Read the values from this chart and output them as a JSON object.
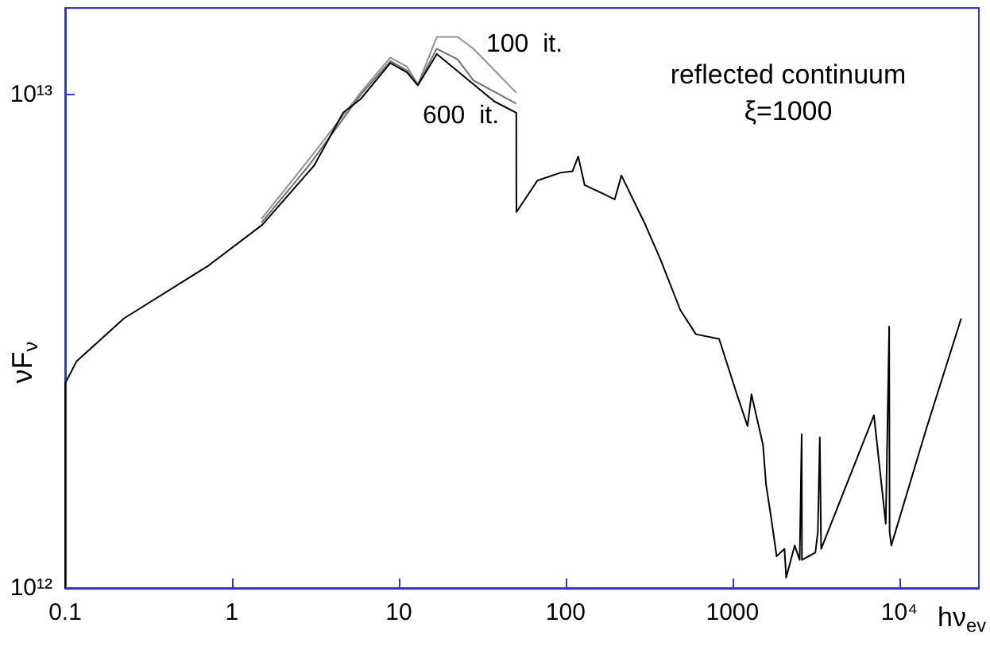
{
  "chart_data": {
    "type": "line",
    "xlabel": "hν$_{ev}$",
    "ylabel": "νF$_{ν}$",
    "log": "xy",
    "marker": "none",
    "line_style": "solid",
    "grid": false,
    "xlim": [
      0.1,
      30000
    ],
    "ylim": [
      1000000000000.0,
      15000000000000.0
    ],
    "xticks": [
      0.1,
      1,
      10,
      100,
      1000,
      {
        "value": 10000,
        "label": "10⁴"
      }
    ],
    "yticks": [
      {
        "value": 1000000000000.0,
        "label": "10¹²"
      },
      {
        "value": 10000000000000.0,
        "label": "10¹³"
      }
    ],
    "annotations": [
      "100  it.",
      "600  it.",
      "reflected continuum",
      "ξ=1000"
    ],
    "series": [
      {
        "color": "#909090",
        "x": [
          1.5,
          2.9,
          5.9,
          8.9,
          11.2,
          13,
          16.9,
          22.5,
          28,
          50.6
        ],
        "values": [
          5600000000000.0,
          7400000000000.0,
          10100000000000.0,
          11900000000000.0,
          11400000000000.0,
          10500000000000.0,
          13100000000000.0,
          13100000000000.0,
          12400000000000.0,
          10100000000000.0
        ]
      },
      {
        "color": "#707070",
        "x": [
          1.5,
          2.9,
          5.9,
          8.9,
          11.2,
          13,
          16.9,
          22.5,
          28,
          50.6
        ],
        "values": [
          5500000000000.0,
          7200000000000.0,
          10000000000000.0,
          11700000000000.0,
          11200000000000.0,
          10500000000000.0,
          12400000000000.0,
          11800000000000.0,
          10700000000000.0,
          9600000000000.0
        ]
      },
      {
        "color": "#000000",
        "x": [
          0.1,
          0.1,
          0.117,
          0.225,
          0.72,
          1.52,
          3.12,
          4.64,
          5.9,
          8.9,
          11.2,
          13,
          16.9,
          37.3,
          50.6,
          50.7,
          67.7,
          93,
          110,
          119,
          130,
          197,
          216,
          297,
          370,
          487,
          604,
          832,
          1063,
          1232,
          1300,
          1525,
          1590,
          1700,
          1840,
          2050,
          2100,
          2360,
          2530,
          2600,
          2610,
          3140,
          3250,
          3340,
          3400,
          7050,
          8300,
          8700,
          8750,
          8960,
          14500,
          23500
        ],
        "values": [
          1000000000000.0,
          2600000000000.0,
          2880000000000.0,
          3520000000000.0,
          4500000000000.0,
          5450000000000.0,
          7200000000000.0,
          9200000000000.0,
          9800000000000.0,
          11600000000000.0,
          11100000000000.0,
          10450000000000.0,
          12100000000000.0,
          9700000000000.0,
          9200000000000.0,
          5780000000000.0,
          6700000000000.0,
          6950000000000.0,
          7000000000000.0,
          7500000000000.0,
          6560000000000.0,
          6140000000000.0,
          6860000000000.0,
          5500000000000.0,
          4640000000000.0,
          3660000000000.0,
          3270000000000.0,
          3200000000000.0,
          2470000000000.0,
          2130000000000.0,
          2470000000000.0,
          1950000000000.0,
          1620000000000.0,
          1400000000000.0,
          1160000000000.0,
          1200000000000.0,
          1050000000000.0,
          1220000000000.0,
          1140000000000.0,
          2050000000000.0,
          1140000000000.0,
          1180000000000.0,
          1300000000000.0,
          2020000000000.0,
          1200000000000.0,
          2240000000000.0,
          1350000000000.0,
          3390000000000.0,
          1300000000000.0,
          1220000000000.0,
          2100000000000.0,
          3520000000000.0
        ]
      }
    ]
  }
}
